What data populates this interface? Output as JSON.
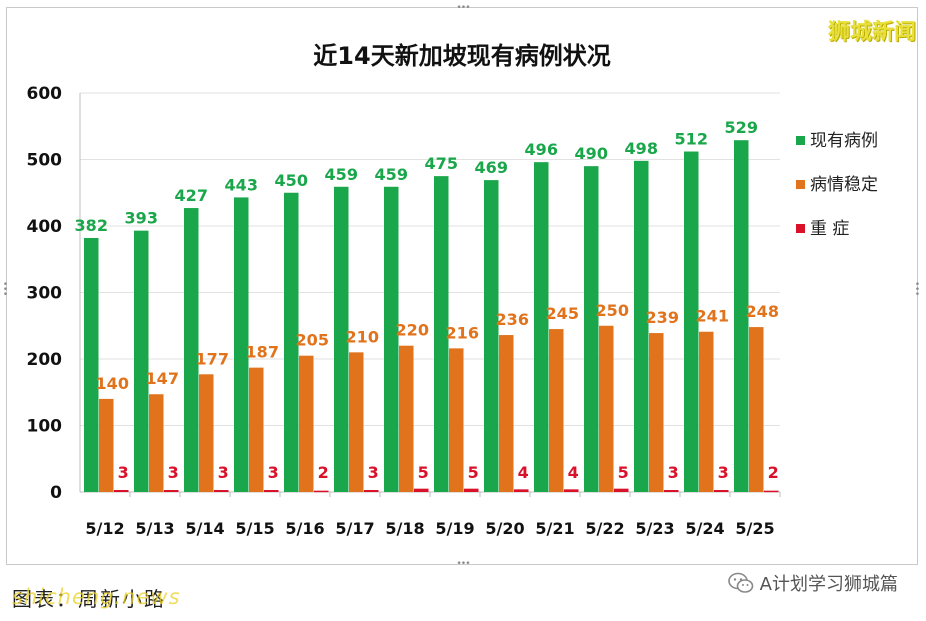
{
  "brand": "狮城新闻",
  "footer": {
    "left_text": "图表：周新小路",
    "watermark": "shicheng.news",
    "wechat_name": "A计划学习狮城篇"
  },
  "chart_data": {
    "type": "bar",
    "title": "近14天新加坡现有病例状况",
    "categories": [
      "5/12",
      "5/13",
      "5/14",
      "5/15",
      "5/16",
      "5/17",
      "5/18",
      "5/19",
      "5/20",
      "5/21",
      "5/22",
      "5/23",
      "5/24",
      "5/25"
    ],
    "series": [
      {
        "name": "现有病例",
        "color": "#1aa64a",
        "label_color": "#1aa64a",
        "values": [
          382,
          393,
          427,
          443,
          450,
          459,
          459,
          475,
          469,
          496,
          490,
          498,
          512,
          529
        ]
      },
      {
        "name": "病情稳定",
        "color": "#e0731c",
        "label_color": "#e0731c",
        "values": [
          140,
          147,
          177,
          187,
          205,
          210,
          220,
          216,
          236,
          245,
          250,
          239,
          241,
          248
        ]
      },
      {
        "name": "重 症",
        "color": "#d9122a",
        "label_color": "#d9122a",
        "values": [
          3,
          3,
          3,
          3,
          2,
          3,
          5,
          5,
          4,
          4,
          5,
          3,
          3,
          2
        ]
      }
    ],
    "ylim": [
      0,
      600
    ],
    "yticks": [
      0,
      100,
      200,
      300,
      400,
      500,
      600
    ],
    "grid": true,
    "legend": "right"
  }
}
